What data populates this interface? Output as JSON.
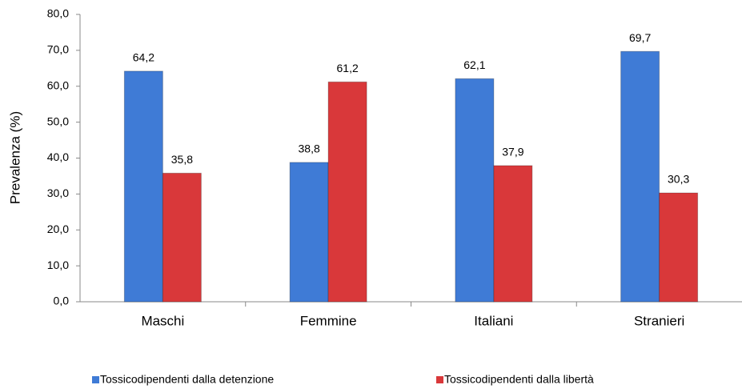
{
  "chart_data": {
    "type": "bar",
    "y_label": "Prevalenza (%)",
    "categories": [
      "Maschi",
      "Femmine",
      "Italiani",
      "Stranieri"
    ],
    "series": [
      {
        "name": "Tossicodipendenti dalla detenzione",
        "color": "#3f7bd6",
        "values": [
          64.2,
          38.8,
          62.1,
          69.7
        ],
        "value_labels": [
          "64,2",
          "38,8",
          "62,1",
          "69,7"
        ]
      },
      {
        "name": "Tossicodipendenti dalla libertà",
        "color": "#d9383a",
        "values": [
          35.8,
          61.2,
          37.9,
          30.3
        ],
        "value_labels": [
          "35,8",
          "61,2",
          "37,9",
          "30,3"
        ]
      }
    ],
    "ylim": [
      0,
      80
    ],
    "yticks": [
      {
        "value": 0,
        "label": "0,0"
      },
      {
        "value": 10,
        "label": "10,0"
      },
      {
        "value": 20,
        "label": "20,0"
      },
      {
        "value": 30,
        "label": "30,0"
      },
      {
        "value": 40,
        "label": "40,0"
      },
      {
        "value": 50,
        "label": "50,0"
      },
      {
        "value": 60,
        "label": "60,0"
      },
      {
        "value": 70,
        "label": "70,0"
      },
      {
        "value": 80,
        "label": "80,0"
      }
    ],
    "legend": "bottom"
  }
}
